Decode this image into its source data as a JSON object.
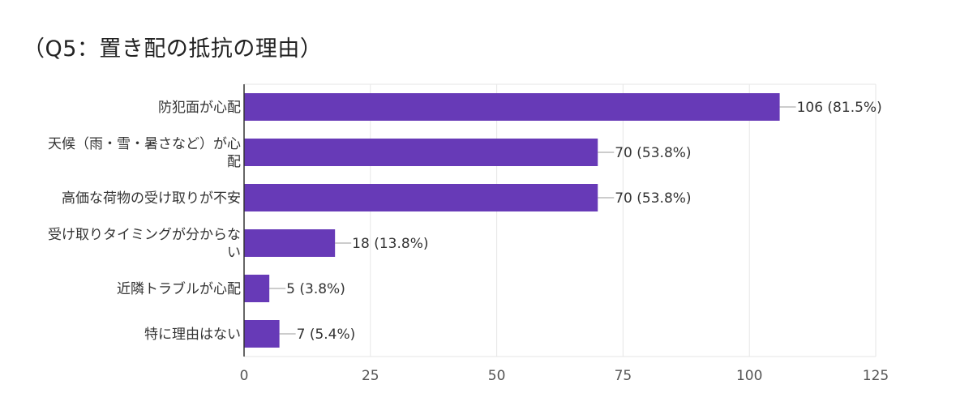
{
  "title": "（Q5：置き配の抵抗の理由）",
  "chart_data": {
    "type": "bar",
    "orientation": "horizontal",
    "title": "（Q5：置き配の抵抗の理由）",
    "categories": [
      [
        "防犯面が心配"
      ],
      [
        "天候（雨・雪・暑さなど）が心",
        "配"
      ],
      [
        "高価な荷物の受け取りが不安"
      ],
      [
        "受け取りタイミングが分からな",
        "い"
      ],
      [
        "近隣トラブルが心配"
      ],
      [
        "特に理由はない"
      ]
    ],
    "values": [
      106,
      70,
      70,
      18,
      5,
      7
    ],
    "value_labels": [
      "106 (81.5%)",
      "70 (53.8%)",
      "70 (53.8%)",
      "18 (13.8%)",
      "5 (3.8%)",
      "7 (5.4%)"
    ],
    "xlim": [
      0,
      125
    ],
    "ticks": [
      0,
      25,
      50,
      75,
      100,
      125
    ],
    "grid": true,
    "colors": {
      "bar": "#673ab7",
      "grid": "#e6e6e6",
      "axis": "#333333",
      "leader": "#999999"
    }
  }
}
